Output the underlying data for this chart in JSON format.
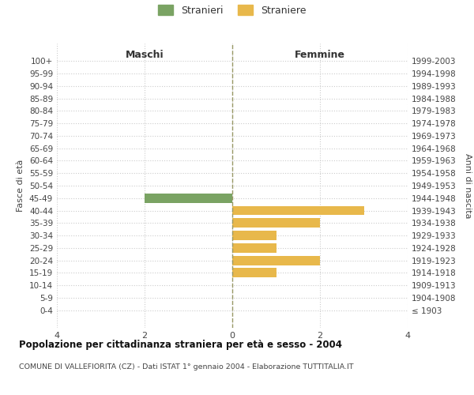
{
  "age_groups": [
    "100+",
    "95-99",
    "90-94",
    "85-89",
    "80-84",
    "75-79",
    "70-74",
    "65-69",
    "60-64",
    "55-59",
    "50-54",
    "45-49",
    "40-44",
    "35-39",
    "30-34",
    "25-29",
    "20-24",
    "15-19",
    "10-14",
    "5-9",
    "0-4"
  ],
  "birth_years": [
    "≤ 1903",
    "1904-1908",
    "1909-1913",
    "1914-1918",
    "1919-1923",
    "1924-1928",
    "1929-1933",
    "1934-1938",
    "1939-1943",
    "1944-1948",
    "1949-1953",
    "1954-1958",
    "1959-1963",
    "1964-1968",
    "1969-1973",
    "1974-1978",
    "1979-1983",
    "1984-1988",
    "1989-1993",
    "1994-1998",
    "1999-2003"
  ],
  "males": [
    0,
    0,
    0,
    0,
    0,
    0,
    0,
    0,
    0,
    0,
    0,
    2,
    0,
    0,
    0,
    0,
    0,
    0,
    0,
    0,
    0
  ],
  "females": [
    0,
    0,
    0,
    0,
    0,
    0,
    0,
    0,
    0,
    0,
    0,
    0,
    3,
    2,
    1,
    1,
    2,
    1,
    0,
    0,
    0
  ],
  "male_color": "#7aa363",
  "female_color": "#e8b84b",
  "male_label": "Stranieri",
  "female_label": "Straniere",
  "xlim": 4,
  "title": "Popolazione per cittadinanza straniera per età e sesso - 2004",
  "subtitle": "COMUNE DI VALLEFIORITA (CZ) - Dati ISTAT 1° gennaio 2004 - Elaborazione TUTTITALIA.IT",
  "ylabel_left": "Fasce di età",
  "ylabel_right": "Anni di nascita",
  "header_left": "Maschi",
  "header_right": "Femmine",
  "bg_color": "#ffffff",
  "grid_color": "#cccccc",
  "vline_color": "#999966"
}
